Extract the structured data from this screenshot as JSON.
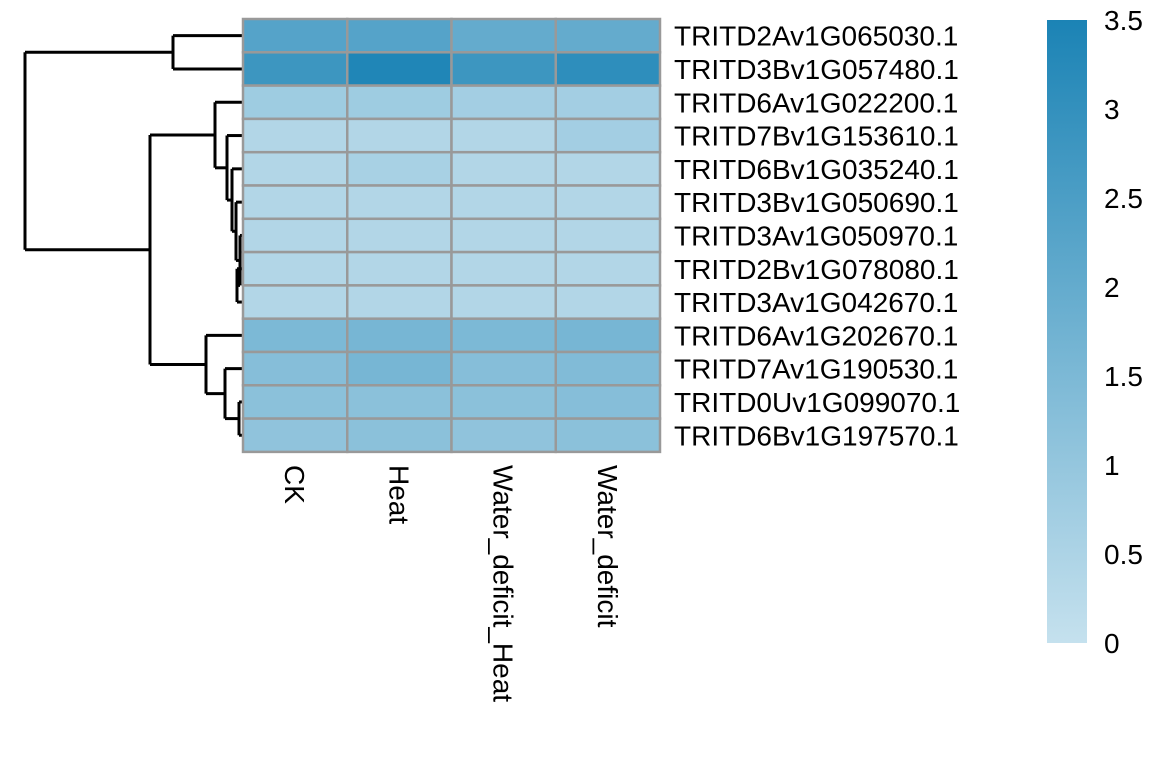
{
  "chart_data": {
    "type": "heatmap",
    "rows": [
      "TRITD2Av1G065030.1",
      "TRITD3Bv1G057480.1",
      "TRITD6Av1G022200.1",
      "TRITD7Bv1G153610.1",
      "TRITD6Bv1G035240.1",
      "TRITD3Bv1G050690.1",
      "TRITD3Av1G050970.1",
      "TRITD2Bv1G078080.1",
      "TRITD3Av1G042670.1",
      "TRITD6Av1G202670.1",
      "TRITD7Av1G190530.1",
      "TRITD0Uv1G099070.1",
      "TRITD6Bv1G197570.1"
    ],
    "columns": [
      "CK",
      "Heat",
      "Water_deficit_Heat",
      "Water_deficit"
    ],
    "values": [
      [
        2.3,
        2.3,
        2.0,
        2.0
      ],
      [
        2.8,
        3.4,
        2.8,
        3.1
      ],
      [
        0.8,
        0.8,
        0.7,
        0.7
      ],
      [
        0.4,
        0.4,
        0.4,
        0.7
      ],
      [
        0.4,
        0.6,
        0.4,
        0.4
      ],
      [
        0.4,
        0.4,
        0.4,
        0.4
      ],
      [
        0.4,
        0.4,
        0.4,
        0.4
      ],
      [
        0.4,
        0.4,
        0.4,
        0.4
      ],
      [
        0.4,
        0.4,
        0.4,
        0.4
      ],
      [
        1.5,
        1.6,
        1.5,
        1.6
      ],
      [
        1.3,
        1.6,
        1.3,
        1.4
      ],
      [
        1.2,
        1.2,
        1.2,
        1.3
      ],
      [
        1.1,
        1.2,
        1.1,
        1.2
      ]
    ],
    "color_scale": {
      "min": 0,
      "max": 3.5,
      "low_color": "#c5e1ee",
      "high_color": "#1b83b5"
    },
    "legend": {
      "ticks": [
        "0",
        "0.5",
        "1",
        "1.5",
        "2",
        "2.5",
        "3",
        "3.5"
      ],
      "tick_values": [
        0,
        0.5,
        1,
        1.5,
        2,
        2.5,
        3,
        3.5
      ],
      "placement": "right"
    },
    "cell_border_color": "#999999",
    "row_dendrogram": true,
    "title": "",
    "xlabel": "",
    "ylabel": ""
  }
}
